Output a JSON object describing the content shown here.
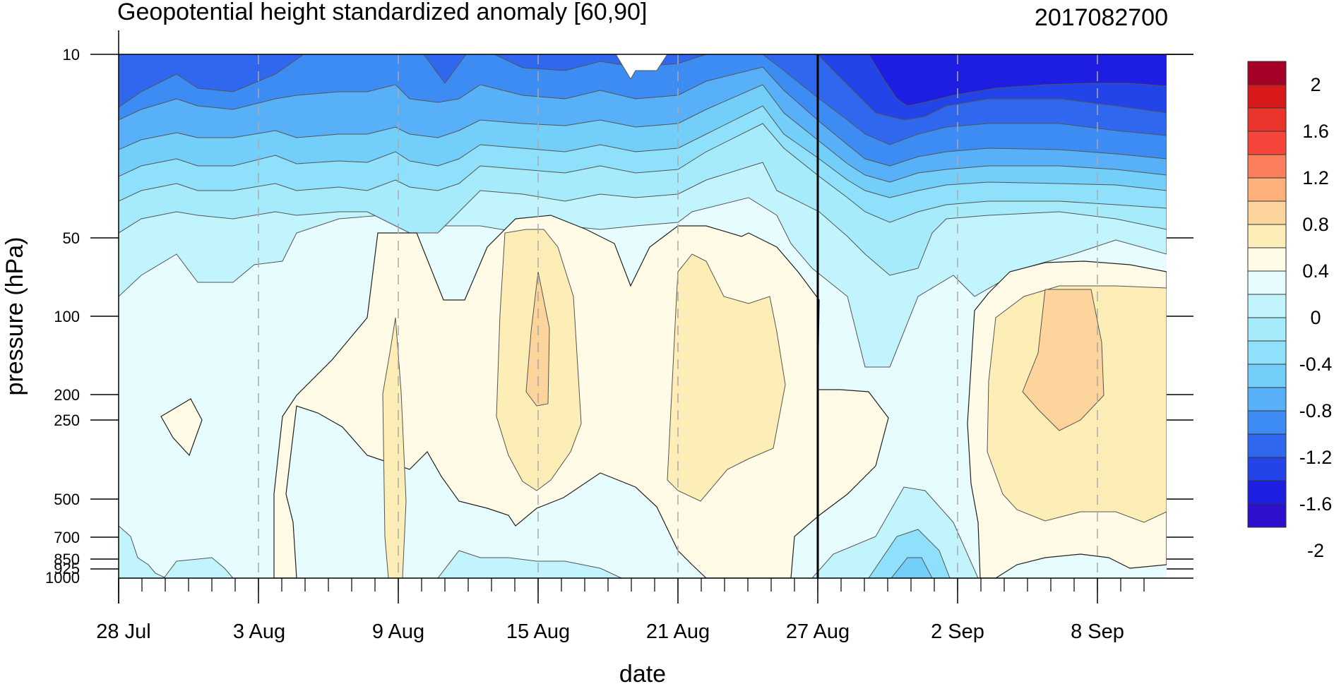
{
  "chart_data": {
    "type": "heatmap",
    "title": "Geopotential height standardized anomaly [60,90]",
    "date_stamp": "2017082700",
    "xlabel": "date",
    "ylabel": "pressure (hPa)",
    "x_tick_labels": [
      "28 Jul",
      "3 Aug",
      "9 Aug",
      "15 Aug",
      "21 Aug",
      "27 Aug",
      "2 Sep",
      "8 Sep"
    ],
    "x_range_days": [
      0,
      45
    ],
    "y_scale": "log",
    "y_range": [
      1000,
      10
    ],
    "y_tick_values": [
      10,
      50,
      100,
      200,
      250,
      500,
      700,
      850,
      925,
      1000
    ],
    "y_tick_labels": [
      "10",
      "50",
      "100",
      "200",
      "250",
      "500",
      "700",
      "850",
      "925",
      "1000"
    ],
    "analysis_marker": "27 Aug",
    "colorbar": {
      "labels": [
        "2",
        "1.6",
        "1.2",
        "0.8",
        "0.4",
        "0",
        "-0.4",
        "-0.8",
        "-1.2",
        "-1.6",
        "-2"
      ],
      "colors": [
        "#a50026",
        "#d7191c",
        "#e9352b",
        "#f7453b",
        "#fb7f5c",
        "#fdb07a",
        "#fdd49c",
        "#fdeeb8",
        "#fffbe6",
        "#e6fcfe",
        "#c2f4fd",
        "#a5ebfc",
        "#8ee0fb",
        "#74cefa",
        "#58b0f8",
        "#3d8cf4",
        "#2f68ee",
        "#2244e8",
        "#1e1ee2",
        "#2e10cc"
      ]
    },
    "grid": "dashed vertical lines at labeled dates"
  }
}
